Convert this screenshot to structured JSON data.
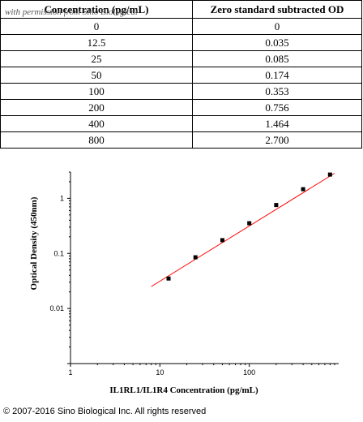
{
  "table": {
    "headers": [
      "Concentration (pg/mL)",
      "Zero standard subtracted OD"
    ],
    "rows": [
      [
        "0",
        "0"
      ],
      [
        "12.5",
        "0.035"
      ],
      [
        "25",
        "0.085"
      ],
      [
        "50",
        "0.174"
      ],
      [
        "100",
        "0.353"
      ],
      [
        "200",
        "0.756"
      ],
      [
        "400",
        "1.464"
      ],
      [
        "800",
        "2.700"
      ]
    ]
  },
  "watermark": "with permission from Sino Biological",
  "copyright": "© 2007-2016 Sino Biological Inc. All rights reserved",
  "chart_data": {
    "type": "scatter",
    "title": "",
    "xlabel": "IL1RL1/IL1R4 Concentration (pg/mL)",
    "ylabel": "Optical Density (450nm)",
    "xscale": "log",
    "yscale": "log",
    "xlim": [
      1,
      1000
    ],
    "ylim": [
      0.001,
      3
    ],
    "xticks": [
      "1",
      "10",
      "100"
    ],
    "yticks": [
      "1",
      "0.1",
      "0.01"
    ],
    "grid": false,
    "marker_color": "#000000",
    "fit_color": "#ff0000",
    "points": [
      {
        "x": 12.5,
        "y": 0.035
      },
      {
        "x": 25,
        "y": 0.085
      },
      {
        "x": 50,
        "y": 0.174
      },
      {
        "x": 100,
        "y": 0.353
      },
      {
        "x": 200,
        "y": 0.756
      },
      {
        "x": 400,
        "y": 1.464
      },
      {
        "x": 800,
        "y": 2.7
      }
    ],
    "fit_line": [
      {
        "x": 8,
        "y": 0.025
      },
      {
        "x": 900,
        "y": 2.85
      }
    ]
  }
}
